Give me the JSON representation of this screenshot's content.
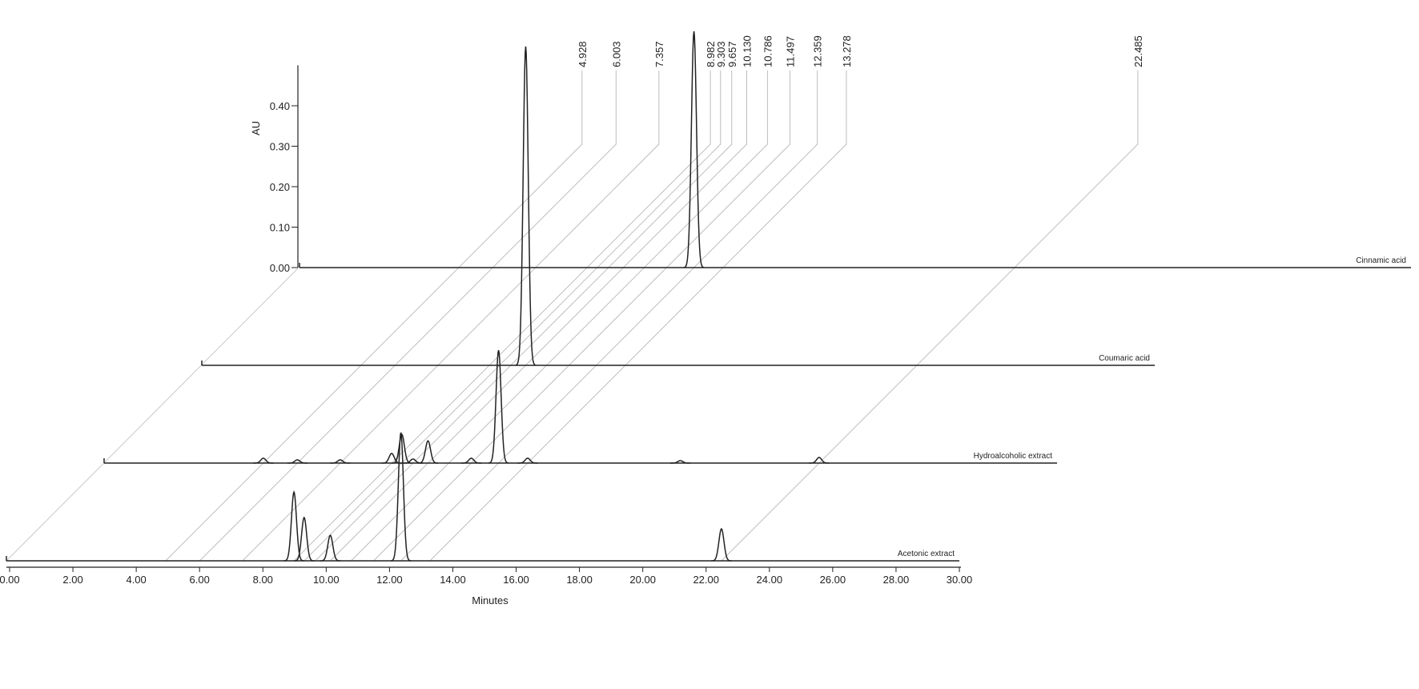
{
  "chart_data": {
    "type": "chromatogram",
    "x_label": "Minutes",
    "y_label": "AU",
    "xlim": [
      0,
      30
    ],
    "xticks": [
      {
        "value": 0,
        "label": "0.00"
      },
      {
        "value": 2,
        "label": "2.00"
      },
      {
        "value": 4,
        "label": "4.00"
      },
      {
        "value": 6,
        "label": "6.00"
      },
      {
        "value": 8,
        "label": "8.00"
      },
      {
        "value": 10,
        "label": "10.00"
      },
      {
        "value": 12,
        "label": "12.00"
      },
      {
        "value": 14,
        "label": "14.00"
      },
      {
        "value": 16,
        "label": "16.00"
      },
      {
        "value": 18,
        "label": "18.00"
      },
      {
        "value": 20,
        "label": "20.00"
      },
      {
        "value": 22,
        "label": "22.00"
      },
      {
        "value": 24,
        "label": "24.00"
      },
      {
        "value": 26,
        "label": "26.00"
      },
      {
        "value": 28,
        "label": "28.00"
      },
      {
        "value": 30,
        "label": "30.00"
      }
    ],
    "ylim": [
      0,
      0.5
    ],
    "yticks": [
      {
        "value": 0,
        "label": "0.00"
      },
      {
        "value": 0.1,
        "label": "0.10"
      },
      {
        "value": 0.2,
        "label": "0.20"
      },
      {
        "value": 0.3,
        "label": "0.30"
      },
      {
        "value": 0.4,
        "label": "0.40"
      }
    ],
    "retention_labels": [
      4.928,
      6.003,
      7.357,
      8.982,
      9.303,
      9.657,
      {
        "value": 10.13,
        "label": "10.130"
      },
      10.786,
      11.497,
      12.359,
      13.278,
      22.485
    ],
    "series": [
      {
        "name": "Acetonic extract",
        "color": "#222222",
        "peaks": [
          {
            "rt": 8.982,
            "height": 0.17
          },
          {
            "rt": 9.303,
            "height": 0.107
          },
          {
            "rt": 10.13,
            "height": 0.063
          },
          {
            "rt": 12.359,
            "height": 0.317
          },
          {
            "rt": 22.485,
            "height": 0.079
          }
        ]
      },
      {
        "name": "Hydroalcoholic extract",
        "color": "#222222",
        "peaks": [
          {
            "rt": 4.928,
            "height": 0.012
          },
          {
            "rt": 6.003,
            "height": 0.008
          },
          {
            "rt": 7.357,
            "height": 0.008
          },
          {
            "rt": 8.982,
            "height": 0.024
          },
          {
            "rt": 9.303,
            "height": 0.071
          },
          {
            "rt": 9.657,
            "height": 0.01
          },
          {
            "rt": 10.13,
            "height": 0.055
          },
          {
            "rt": 11.497,
            "height": 0.012
          },
          {
            "rt": 12.359,
            "height": 0.279
          },
          {
            "rt": 13.278,
            "height": 0.012
          },
          {
            "rt": 18.1,
            "height": 0.006
          },
          {
            "rt": 22.485,
            "height": 0.014
          }
        ]
      },
      {
        "name": "Coumaric acid",
        "color": "#222222",
        "peaks": [
          {
            "rt": 10.13,
            "height": 0.788
          }
        ]
      },
      {
        "name": "Cinnamic acid",
        "color": "#222222",
        "peaks": [
          {
            "rt": 12.359,
            "height": 0.584
          }
        ]
      }
    ]
  }
}
